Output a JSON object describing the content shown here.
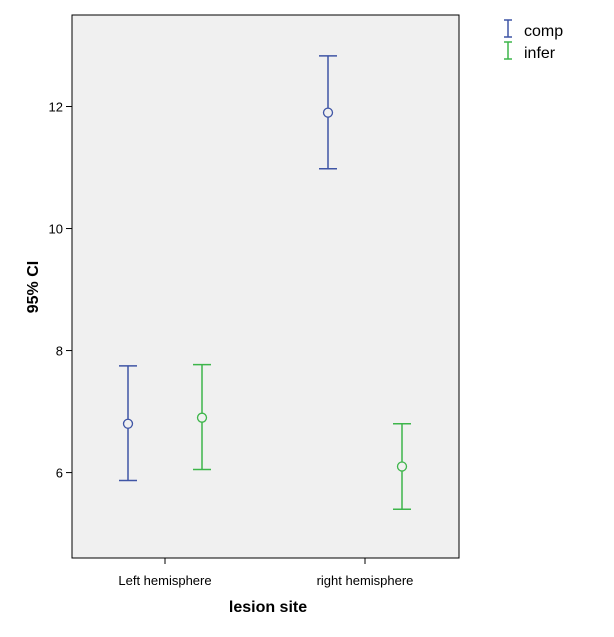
{
  "chart_data": {
    "type": "errorbar",
    "title": "",
    "xlabel": "lesion site",
    "ylabel": "95% CI",
    "categories": [
      "Left hemisphere",
      "right hemisphere"
    ],
    "ylim": [
      4.6,
      13.5
    ],
    "yticks": [
      "6",
      "8",
      "10",
      "12"
    ],
    "grid": false,
    "legend_position": "top-right, outside plot",
    "plot_background": "#f0f0f0",
    "series": [
      {
        "name": "comp",
        "color": "#3f55a5",
        "points": [
          {
            "category": "Left hemisphere",
            "mean": 6.8,
            "lower": 5.87,
            "upper": 7.75
          },
          {
            "category": "right hemisphere",
            "mean": 11.9,
            "lower": 10.98,
            "upper": 12.83
          }
        ]
      },
      {
        "name": "infer",
        "color": "#3db54a",
        "points": [
          {
            "category": "Left hemisphere",
            "mean": 6.9,
            "lower": 6.05,
            "upper": 7.77
          },
          {
            "category": "right hemisphere",
            "mean": 6.1,
            "lower": 5.4,
            "upper": 6.8
          }
        ]
      }
    ]
  }
}
